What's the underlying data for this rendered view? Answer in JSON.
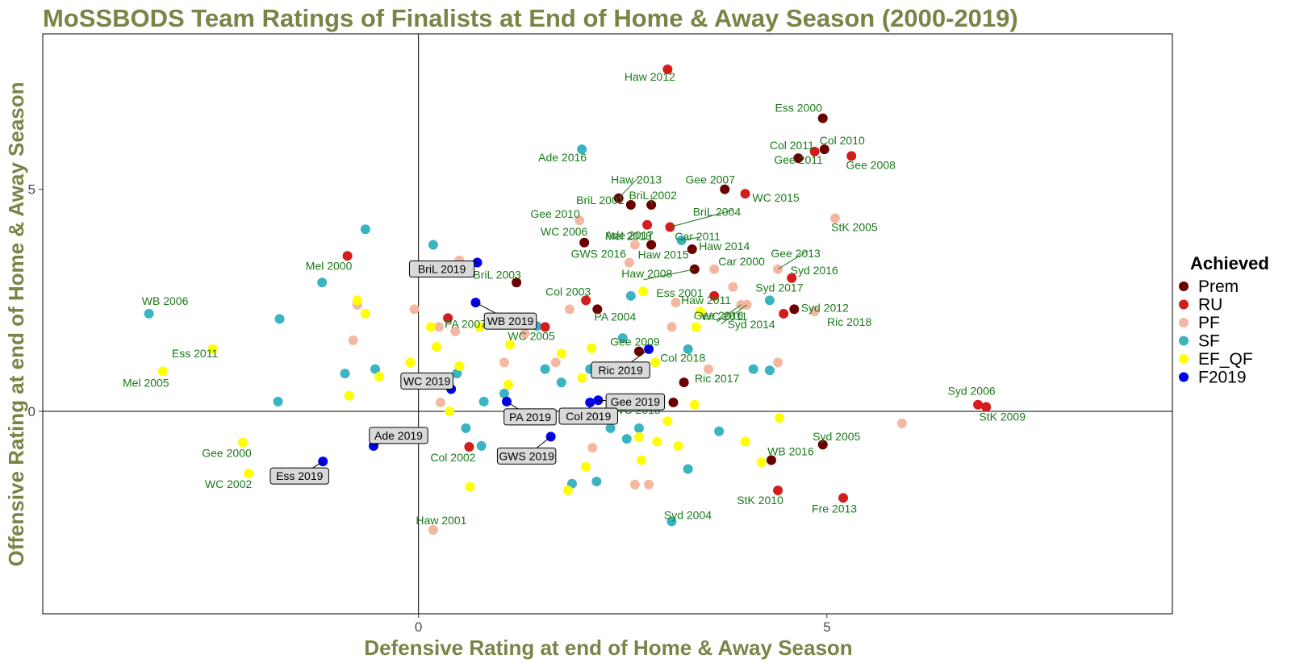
{
  "chart_data": {
    "type": "scatter",
    "title": "MoSSBODS Team Ratings of Finalists at End of Home & Away Season (2000-2019)",
    "xlabel": "Defensive Rating at end of Home & Away Season",
    "ylabel": "Offensive Rating at end of Home & Away Season",
    "xlim": [
      -4.6,
      9.23
    ],
    "ylim": [
      -4.56,
      8.5
    ],
    "xticks": [
      0,
      5
    ],
    "yticks": [
      0,
      5
    ],
    "grid": false,
    "legend_position": "right",
    "legend_title": "Achieved",
    "categories": [
      {
        "key": "Prem",
        "color": "#6b0000"
      },
      {
        "key": "RU",
        "color": "#d41c1c"
      },
      {
        "key": "PF",
        "color": "#f4b8a2"
      },
      {
        "key": "SF",
        "color": "#3ab3c2"
      },
      {
        "key": "EF_QF",
        "color": "#ffff00"
      },
      {
        "key": "F2019",
        "color": "#0000ee"
      }
    ],
    "labeled_points": [
      {
        "label": "Haw 2012",
        "x": 3.05,
        "y": 7.7,
        "cat": "RU"
      },
      {
        "label": "Ess 2000",
        "x": 4.95,
        "y": 6.6,
        "cat": "Prem"
      },
      {
        "label": "Col 2011",
        "x": 4.65,
        "y": 5.7,
        "cat": "Prem"
      },
      {
        "label": "Col 2010",
        "x": 4.97,
        "y": 5.9,
        "cat": "Prem"
      },
      {
        "label": "Gee 2011",
        "x": 4.85,
        "y": 5.85,
        "cat": "RU"
      },
      {
        "label": "Gee 2008",
        "x": 5.3,
        "y": 5.75,
        "cat": "RU"
      },
      {
        "label": "Ade 2016",
        "x": 2.0,
        "y": 5.9,
        "cat": "SF"
      },
      {
        "label": "Haw 2013",
        "x": 2.45,
        "y": 4.8,
        "cat": "Prem"
      },
      {
        "label": "BriL 2001",
        "x": 2.6,
        "y": 4.65,
        "cat": "Prem"
      },
      {
        "label": "BriL 2002",
        "x": 2.85,
        "y": 4.65,
        "cat": "Prem"
      },
      {
        "label": "Gee 2007",
        "x": 3.75,
        "y": 5.0,
        "cat": "Prem"
      },
      {
        "label": "WC 2015",
        "x": 4.0,
        "y": 4.9,
        "cat": "RU"
      },
      {
        "label": "Gee 2010",
        "x": 1.97,
        "y": 4.3,
        "cat": "PF"
      },
      {
        "label": "Ade 2017",
        "x": 2.8,
        "y": 4.2,
        "cat": "RU"
      },
      {
        "label": "BriL 2004",
        "x": 3.08,
        "y": 4.15,
        "cat": "RU"
      },
      {
        "label": "StK 2005",
        "x": 5.1,
        "y": 4.35,
        "cat": "PF"
      },
      {
        "label": "WC 2006",
        "x": 2.03,
        "y": 3.8,
        "cat": "Prem"
      },
      {
        "label": "Mel 2018",
        "x": 2.65,
        "y": 3.75,
        "cat": "PF"
      },
      {
        "label": "Car 2011",
        "x": 3.22,
        "y": 3.85,
        "cat": "SF"
      },
      {
        "label": "GWS 2016",
        "x": 2.58,
        "y": 3.35,
        "cat": "PF"
      },
      {
        "label": "Haw 2014",
        "x": 3.35,
        "y": 3.65,
        "cat": "Prem"
      },
      {
        "label": "Haw 2015",
        "x": 2.85,
        "y": 3.75,
        "cat": "Prem"
      },
      {
        "label": "Gee 2013",
        "x": 4.4,
        "y": 3.2,
        "cat": "PF"
      },
      {
        "label": "Haw 2008",
        "x": 3.38,
        "y": 3.2,
        "cat": "Prem"
      },
      {
        "label": "Car 2000",
        "x": 3.62,
        "y": 3.2,
        "cat": "PF"
      },
      {
        "label": "Syd 2016",
        "x": 4.57,
        "y": 3.0,
        "cat": "RU"
      },
      {
        "label": "Mel 2000",
        "x": -0.87,
        "y": 3.5,
        "cat": "RU"
      },
      {
        "label": "BriL 2003",
        "x": 1.2,
        "y": 2.9,
        "cat": "Prem"
      },
      {
        "label": "Haw 2011",
        "x": 3.62,
        "y": 2.6,
        "cat": "RU"
      },
      {
        "label": "Col 2003",
        "x": 2.05,
        "y": 2.5,
        "cat": "RU"
      },
      {
        "label": "Syd 2017",
        "x": 4.3,
        "y": 2.5,
        "cat": "SF"
      },
      {
        "label": "Syd 2012",
        "x": 4.6,
        "y": 2.3,
        "cat": "Prem"
      },
      {
        "label": "WB 2006",
        "x": -3.3,
        "y": 2.2,
        "cat": "SF"
      },
      {
        "label": "PA 2007",
        "x": 0.36,
        "y": 2.1,
        "cat": "RU"
      },
      {
        "label": "Ess 2001",
        "x": 3.15,
        "y": 2.45,
        "cat": "PF"
      },
      {
        "label": "PA 2004",
        "x": 2.19,
        "y": 2.3,
        "cat": "Prem"
      },
      {
        "label": "Gee 2016",
        "x": 3.95,
        "y": 2.4,
        "cat": "PF"
      },
      {
        "label": "Ric 2018",
        "x": 4.85,
        "y": 2.25,
        "cat": "PF"
      },
      {
        "label": "Syd 2014",
        "x": 4.47,
        "y": 2.2,
        "cat": "RU"
      },
      {
        "label": "WC 2005",
        "x": 1.55,
        "y": 1.9,
        "cat": "RU"
      },
      {
        "label": "WC 2011",
        "x": 4.02,
        "y": 2.4,
        "cat": "PF"
      },
      {
        "label": "Gee 2009",
        "x": 2.7,
        "y": 1.35,
        "cat": "Prem"
      },
      {
        "label": "Ess 2011",
        "x": -2.52,
        "y": 1.4,
        "cat": "EF_QF"
      },
      {
        "label": "Col 2018",
        "x": 2.9,
        "y": 1.1,
        "cat": "EF_QF"
      },
      {
        "label": "Mel 2005",
        "x": -3.13,
        "y": 0.9,
        "cat": "EF_QF"
      },
      {
        "label": "Ric 2017",
        "x": 3.25,
        "y": 0.65,
        "cat": "Prem"
      },
      {
        "label": "Syd 2006",
        "x": 6.85,
        "y": 0.15,
        "cat": "RU"
      },
      {
        "label": "StK 2009",
        "x": 6.95,
        "y": 0.1,
        "cat": "RU"
      },
      {
        "label": "WC 2018",
        "x": 3.12,
        "y": 0.2,
        "cat": "Prem"
      },
      {
        "label": "Syd 2005",
        "x": 4.95,
        "y": -0.75,
        "cat": "Prem"
      },
      {
        "label": "Gee 2000",
        "x": -2.15,
        "y": -0.7,
        "cat": "EF_QF"
      },
      {
        "label": "Col 2002",
        "x": 0.62,
        "y": -0.8,
        "cat": "RU"
      },
      {
        "label": "WB 2016",
        "x": 4.32,
        "y": -1.1,
        "cat": "Prem"
      },
      {
        "label": "WC 2002",
        "x": -2.08,
        "y": -1.4,
        "cat": "EF_QF"
      },
      {
        "label": "StK 2010",
        "x": 4.4,
        "y": -1.78,
        "cat": "RU"
      },
      {
        "label": "Fre 2013",
        "x": 5.2,
        "y": -1.95,
        "cat": "RU"
      },
      {
        "label": "Syd 2004",
        "x": 3.1,
        "y": -2.48,
        "cat": "SF"
      },
      {
        "label": "Haw 2001",
        "x": 0.18,
        "y": -2.67,
        "cat": "PF"
      }
    ],
    "boxed_points": [
      {
        "label": "BriL 2019",
        "x": 0.72,
        "y": 3.35,
        "cat": "F2019"
      },
      {
        "label": "WB 2019",
        "x": 0.7,
        "y": 2.45,
        "cat": "F2019"
      },
      {
        "label": "Ric 2019",
        "x": 2.82,
        "y": 1.4,
        "cat": "F2019"
      },
      {
        "label": "WC 2019",
        "x": 0.4,
        "y": 0.5,
        "cat": "F2019"
      },
      {
        "label": "Gee 2019",
        "x": 2.2,
        "y": 0.25,
        "cat": "F2019"
      },
      {
        "label": "PA 2019",
        "x": 1.08,
        "y": 0.22,
        "cat": "F2019"
      },
      {
        "label": "Col 2019",
        "x": 2.1,
        "y": 0.2,
        "cat": "F2019"
      },
      {
        "label": "GWS 2019",
        "x": 1.62,
        "y": -0.57,
        "cat": "F2019"
      },
      {
        "label": "Ade 2019",
        "x": -0.55,
        "y": -0.78,
        "cat": "F2019"
      },
      {
        "label": "Ess 2019",
        "x": -1.17,
        "y": -1.13,
        "cat": "F2019"
      }
    ],
    "other_points": [
      {
        "x": -0.65,
        "y": 4.1,
        "cat": "SF"
      },
      {
        "x": 0.18,
        "y": 3.75,
        "cat": "SF"
      },
      {
        "x": -1.18,
        "y": 2.9,
        "cat": "SF"
      },
      {
        "x": -1.7,
        "y": 2.08,
        "cat": "SF"
      },
      {
        "x": -0.9,
        "y": 0.85,
        "cat": "SF"
      },
      {
        "x": -0.53,
        "y": 0.95,
        "cat": "SF"
      },
      {
        "x": -1.72,
        "y": 0.22,
        "cat": "SF"
      },
      {
        "x": 0.47,
        "y": 0.85,
        "cat": "SF"
      },
      {
        "x": 1.05,
        "y": 0.4,
        "cat": "SF"
      },
      {
        "x": 0.8,
        "y": 0.22,
        "cat": "SF"
      },
      {
        "x": 1.45,
        "y": 1.92,
        "cat": "SF"
      },
      {
        "x": 2.6,
        "y": 2.6,
        "cat": "SF"
      },
      {
        "x": 2.5,
        "y": 1.65,
        "cat": "SF"
      },
      {
        "x": 1.55,
        "y": 0.95,
        "cat": "SF"
      },
      {
        "x": 3.3,
        "y": 1.4,
        "cat": "SF"
      },
      {
        "x": 2.1,
        "y": 0.95,
        "cat": "SF"
      },
      {
        "x": 1.75,
        "y": 0.65,
        "cat": "SF"
      },
      {
        "x": 4.1,
        "y": 0.95,
        "cat": "SF"
      },
      {
        "x": 4.3,
        "y": 0.92,
        "cat": "SF"
      },
      {
        "x": 0.58,
        "y": -0.38,
        "cat": "SF"
      },
      {
        "x": 0.77,
        "y": -0.78,
        "cat": "SF"
      },
      {
        "x": 2.35,
        "y": -0.38,
        "cat": "SF"
      },
      {
        "x": 2.55,
        "y": -0.62,
        "cat": "SF"
      },
      {
        "x": 2.7,
        "y": -0.38,
        "cat": "SF"
      },
      {
        "x": 3.68,
        "y": -0.45,
        "cat": "SF"
      },
      {
        "x": 3.3,
        "y": -1.3,
        "cat": "SF"
      },
      {
        "x": 1.88,
        "y": -1.63,
        "cat": "SF"
      },
      {
        "x": 2.18,
        "y": -1.58,
        "cat": "SF"
      },
      {
        "x": 0.5,
        "y": 3.4,
        "cat": "PF"
      },
      {
        "x": -0.75,
        "y": 2.4,
        "cat": "PF"
      },
      {
        "x": -0.05,
        "y": 2.3,
        "cat": "PF"
      },
      {
        "x": 0.25,
        "y": 1.9,
        "cat": "PF"
      },
      {
        "x": 0.45,
        "y": 1.8,
        "cat": "PF"
      },
      {
        "x": -0.8,
        "y": 1.6,
        "cat": "PF"
      },
      {
        "x": 1.3,
        "y": 1.75,
        "cat": "PF"
      },
      {
        "x": 1.85,
        "y": 2.3,
        "cat": "PF"
      },
      {
        "x": 1.05,
        "y": 1.1,
        "cat": "PF"
      },
      {
        "x": 1.68,
        "y": 1.1,
        "cat": "PF"
      },
      {
        "x": 2.4,
        "y": 0.95,
        "cat": "PF"
      },
      {
        "x": 3.1,
        "y": 1.9,
        "cat": "PF"
      },
      {
        "x": 3.55,
        "y": 0.95,
        "cat": "PF"
      },
      {
        "x": 3.85,
        "y": 2.8,
        "cat": "PF"
      },
      {
        "x": 4.4,
        "y": 1.1,
        "cat": "PF"
      },
      {
        "x": 0.27,
        "y": 0.2,
        "cat": "PF"
      },
      {
        "x": 2.13,
        "y": -0.82,
        "cat": "PF"
      },
      {
        "x": 2.65,
        "y": -1.65,
        "cat": "PF"
      },
      {
        "x": 2.82,
        "y": -1.65,
        "cat": "PF"
      },
      {
        "x": 2.8,
        "y": 0.2,
        "cat": "PF"
      },
      {
        "x": 5.92,
        "y": -0.27,
        "cat": "PF"
      },
      {
        "x": -0.75,
        "y": 2.5,
        "cat": "EF_QF"
      },
      {
        "x": -0.65,
        "y": 2.2,
        "cat": "EF_QF"
      },
      {
        "x": 0.15,
        "y": 1.9,
        "cat": "EF_QF"
      },
      {
        "x": 0.22,
        "y": 1.45,
        "cat": "EF_QF"
      },
      {
        "x": 0.75,
        "y": 1.9,
        "cat": "EF_QF"
      },
      {
        "x": 1.12,
        "y": 1.5,
        "cat": "EF_QF"
      },
      {
        "x": -0.1,
        "y": 1.1,
        "cat": "EF_QF"
      },
      {
        "x": 0.5,
        "y": 1.02,
        "cat": "EF_QF"
      },
      {
        "x": -0.85,
        "y": 0.35,
        "cat": "EF_QF"
      },
      {
        "x": -0.48,
        "y": 0.78,
        "cat": "EF_QF"
      },
      {
        "x": 0.38,
        "y": 0.0,
        "cat": "EF_QF"
      },
      {
        "x": 1.1,
        "y": 0.6,
        "cat": "EF_QF"
      },
      {
        "x": 1.75,
        "y": 1.3,
        "cat": "EF_QF"
      },
      {
        "x": 2.0,
        "y": 0.75,
        "cat": "EF_QF"
      },
      {
        "x": 2.12,
        "y": 1.42,
        "cat": "EF_QF"
      },
      {
        "x": 2.75,
        "y": 2.7,
        "cat": "EF_QF"
      },
      {
        "x": 3.45,
        "y": 2.25,
        "cat": "EF_QF"
      },
      {
        "x": 3.4,
        "y": 1.9,
        "cat": "EF_QF"
      },
      {
        "x": 3.38,
        "y": 0.15,
        "cat": "EF_QF"
      },
      {
        "x": 3.05,
        "y": -0.22,
        "cat": "EF_QF"
      },
      {
        "x": 2.7,
        "y": -0.58,
        "cat": "EF_QF"
      },
      {
        "x": 2.92,
        "y": -0.68,
        "cat": "EF_QF"
      },
      {
        "x": 3.18,
        "y": -0.78,
        "cat": "EF_QF"
      },
      {
        "x": 2.73,
        "y": -1.1,
        "cat": "EF_QF"
      },
      {
        "x": 2.05,
        "y": -1.25,
        "cat": "EF_QF"
      },
      {
        "x": 1.83,
        "y": -1.78,
        "cat": "EF_QF"
      },
      {
        "x": 0.63,
        "y": -1.7,
        "cat": "EF_QF"
      },
      {
        "x": 4.0,
        "y": -0.68,
        "cat": "EF_QF"
      },
      {
        "x": 4.2,
        "y": -1.15,
        "cat": "EF_QF"
      },
      {
        "x": 4.42,
        "y": -0.15,
        "cat": "EF_QF"
      }
    ]
  }
}
